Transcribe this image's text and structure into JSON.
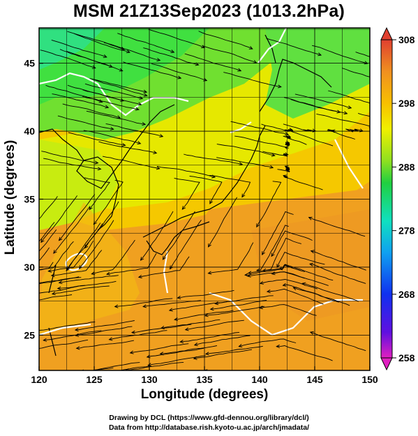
{
  "title": "MSM 21Z13Sep2023 (1013.2hPa)",
  "xlabel": "Longitude (degrees)",
  "ylabel": "Latitude  (degrees)",
  "credits": {
    "line1": "Drawing by DCL (https://www.gfd-dennou.org/library/dcl/)",
    "line2": "Data from http://database.rish.kyoto-u.ac.jp/arch/jmadata/"
  },
  "chart_data": {
    "type": "heatmap",
    "title": "MSM 21Z13Sep2023 (1013.2hPa)",
    "xlabel": "Longitude (degrees)",
    "ylabel": "Latitude  (degrees)",
    "xlim": [
      120,
      150
    ],
    "ylim": [
      22.4,
      47.6
    ],
    "x_ticks": [
      "120",
      "125",
      "130",
      "135",
      "140",
      "145",
      "150"
    ],
    "y_ticks": [
      "25",
      "30",
      "35",
      "40",
      "45"
    ],
    "grid": true,
    "colorbar": {
      "min": 258,
      "max": 308,
      "ticks": [
        "308",
        "298",
        "288",
        "278",
        "268",
        "258"
      ],
      "colors": [
        "#e020c0",
        "#4040ff",
        "#2040ff",
        "#00a0ff",
        "#00e0d0",
        "#20e060",
        "#60e040",
        "#c0f000",
        "#f0f000",
        "#f8c000",
        "#f09020",
        "#e04030"
      ]
    },
    "field": "temperature (K) with streamlines"
  }
}
